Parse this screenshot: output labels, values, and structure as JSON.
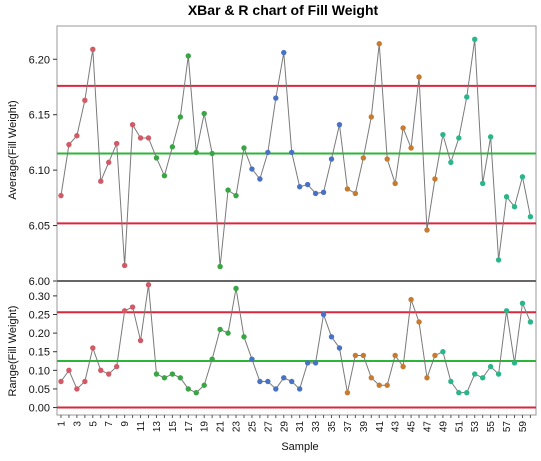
{
  "chart_data": {
    "type": "line",
    "title": "XBar & R chart of Fill Weight",
    "xlabel": "Sample",
    "grid": false,
    "group_colors": [
      "#d05a66",
      "#3aa545",
      "#4a72c4",
      "#c87a2e",
      "#2bb58a"
    ],
    "x_tick_labels": [
      "1",
      "3",
      "5",
      "7",
      "9",
      "11",
      "13",
      "15",
      "17",
      "19",
      "21",
      "23",
      "25",
      "27",
      "29",
      "31",
      "33",
      "35",
      "37",
      "39",
      "41",
      "43",
      "45",
      "47",
      "49",
      "51",
      "53",
      "55",
      "57",
      "59"
    ],
    "panels": [
      {
        "name": "xbar",
        "ylabel": "Average(Fill Weight)",
        "ylim": [
          6.0,
          6.23
        ],
        "y_ticks": [
          "6.00",
          "6.05",
          "6.10",
          "6.15",
          "6.20"
        ],
        "ucl": 6.176,
        "center": 6.115,
        "lcl": 6.052,
        "x": [
          1,
          2,
          3,
          4,
          5,
          6,
          7,
          8,
          9,
          10,
          11,
          12,
          13,
          14,
          15,
          16,
          17,
          18,
          19,
          20,
          21,
          22,
          23,
          24,
          25,
          26,
          27,
          28,
          29,
          30,
          31,
          32,
          33,
          34,
          35,
          36,
          37,
          38,
          39,
          40,
          41,
          42,
          43,
          44,
          45,
          46,
          47,
          48,
          49,
          50,
          51,
          52,
          53,
          54,
          55,
          56,
          57,
          58,
          59,
          60
        ],
        "values": [
          6.077,
          6.123,
          6.131,
          6.163,
          6.209,
          6.09,
          6.107,
          6.124,
          6.014,
          6.141,
          6.129,
          6.129,
          6.111,
          6.095,
          6.121,
          6.148,
          6.203,
          6.116,
          6.151,
          6.115,
          6.013,
          6.082,
          6.077,
          6.12,
          6.101,
          6.092,
          6.116,
          6.165,
          6.206,
          6.116,
          6.085,
          6.087,
          6.079,
          6.08,
          6.11,
          6.141,
          6.083,
          6.079,
          6.111,
          6.148,
          6.214,
          6.11,
          6.088,
          6.138,
          6.12,
          6.184,
          6.046,
          6.092,
          6.132,
          6.107,
          6.129,
          6.166,
          6.218,
          6.088,
          6.13,
          6.019,
          6.076,
          6.067,
          6.094,
          6.058
        ],
        "groups": [
          0,
          0,
          0,
          0,
          0,
          0,
          0,
          0,
          0,
          0,
          0,
          0,
          1,
          1,
          1,
          1,
          1,
          1,
          1,
          1,
          1,
          1,
          1,
          1,
          2,
          2,
          2,
          2,
          2,
          2,
          2,
          2,
          2,
          2,
          2,
          2,
          3,
          3,
          3,
          3,
          3,
          3,
          3,
          3,
          3,
          3,
          3,
          3,
          4,
          4,
          4,
          4,
          4,
          4,
          4,
          4,
          4,
          4,
          4,
          4
        ]
      },
      {
        "name": "range",
        "ylabel": "Range(Fill Weight)",
        "ylim": [
          -0.02,
          0.34
        ],
        "y_ticks": [
          "0.00",
          "0.05",
          "0.10",
          "0.15",
          "0.20",
          "0.25",
          "0.30"
        ],
        "ucl": 0.256,
        "center": 0.125,
        "lcl": 0.0,
        "x": [
          1,
          2,
          3,
          4,
          5,
          6,
          7,
          8,
          9,
          10,
          11,
          12,
          13,
          14,
          15,
          16,
          17,
          18,
          19,
          20,
          21,
          22,
          23,
          24,
          25,
          26,
          27,
          28,
          29,
          30,
          31,
          32,
          33,
          34,
          35,
          36,
          37,
          38,
          39,
          40,
          41,
          42,
          43,
          44,
          45,
          46,
          47,
          48,
          49,
          50,
          51,
          52,
          53,
          54,
          55,
          56,
          57,
          58,
          59,
          60
        ],
        "values": [
          0.07,
          0.1,
          0.05,
          0.07,
          0.16,
          0.1,
          0.09,
          0.11,
          0.26,
          0.27,
          0.18,
          0.33,
          0.09,
          0.08,
          0.09,
          0.08,
          0.05,
          0.04,
          0.06,
          0.13,
          0.21,
          0.2,
          0.32,
          0.19,
          0.13,
          0.07,
          0.07,
          0.05,
          0.08,
          0.07,
          0.05,
          0.12,
          0.12,
          0.25,
          0.19,
          0.16,
          0.04,
          0.14,
          0.14,
          0.08,
          0.06,
          0.06,
          0.14,
          0.11,
          0.29,
          0.23,
          0.08,
          0.14,
          0.15,
          0.07,
          0.04,
          0.04,
          0.09,
          0.08,
          0.11,
          0.09,
          0.26,
          0.12,
          0.28,
          0.23
        ],
        "groups": [
          0,
          0,
          0,
          0,
          0,
          0,
          0,
          0,
          0,
          0,
          0,
          0,
          1,
          1,
          1,
          1,
          1,
          1,
          1,
          1,
          1,
          1,
          1,
          1,
          2,
          2,
          2,
          2,
          2,
          2,
          2,
          2,
          2,
          2,
          2,
          2,
          3,
          3,
          3,
          3,
          3,
          3,
          3,
          3,
          3,
          3,
          3,
          3,
          4,
          4,
          4,
          4,
          4,
          4,
          4,
          4,
          4,
          4,
          4,
          4
        ]
      }
    ]
  }
}
